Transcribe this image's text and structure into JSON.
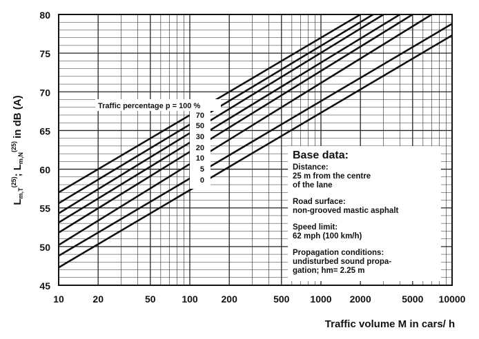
{
  "chart_data": {
    "type": "line",
    "title": "",
    "xlabel": "Traffic volume M in cars/ h",
    "ylabel_main": "L",
    "ylabel_parts": [
      "L",
      "m,T",
      "(25)",
      "; ",
      "L",
      "m,N",
      "(25)",
      " in dB (A)"
    ],
    "x_scale": "log",
    "xlim": [
      10,
      10000
    ],
    "ylim": [
      45,
      80
    ],
    "x_ticks": [
      "10",
      "20",
      "50",
      "100",
      "200",
      "500",
      "1000",
      "2000",
      "5000",
      "10000"
    ],
    "y_ticks": [
      "45",
      "50",
      "55",
      "60",
      "65",
      "70",
      "75",
      "80"
    ],
    "grid": true,
    "series_label_prefix": "Traffic percentage p =",
    "series_unit": "%",
    "series": [
      {
        "name": "100",
        "x": [
          10,
          2000
        ],
        "y": [
          57.0,
          80.0
        ]
      },
      {
        "name": "70",
        "x": [
          10,
          2500
        ],
        "y": [
          55.6,
          80.0
        ]
      },
      {
        "name": "50",
        "x": [
          10,
          3000
        ],
        "y": [
          54.3,
          80.0
        ]
      },
      {
        "name": "30",
        "x": [
          10,
          4000
        ],
        "y": [
          53.1,
          80.0
        ]
      },
      {
        "name": "20",
        "x": [
          10,
          5000
        ],
        "y": [
          51.8,
          80.0
        ]
      },
      {
        "name": "10",
        "x": [
          10,
          7000
        ],
        "y": [
          50.2,
          80.0
        ]
      },
      {
        "name": "5",
        "x": [
          10,
          10000
        ],
        "y": [
          48.8,
          78.8
        ]
      },
      {
        "name": "0",
        "x": [
          10,
          10000
        ],
        "y": [
          47.3,
          77.3
        ]
      }
    ]
  },
  "info_box": {
    "title": "Base data:",
    "items": [
      {
        "heading": "Distance:",
        "lines": [
          "25 m from the centre",
          "of the lane"
        ]
      },
      {
        "heading": "Road surface:",
        "lines": [
          "non-grooved mastic asphalt"
        ]
      },
      {
        "heading": "Speed limit:",
        "lines": [
          "62 mph (100 km/h)"
        ]
      },
      {
        "heading": "Propagation conditions:",
        "lines": [
          "undisturbed sound propa-",
          "gation; hm= 2.25 m"
        ]
      }
    ]
  }
}
